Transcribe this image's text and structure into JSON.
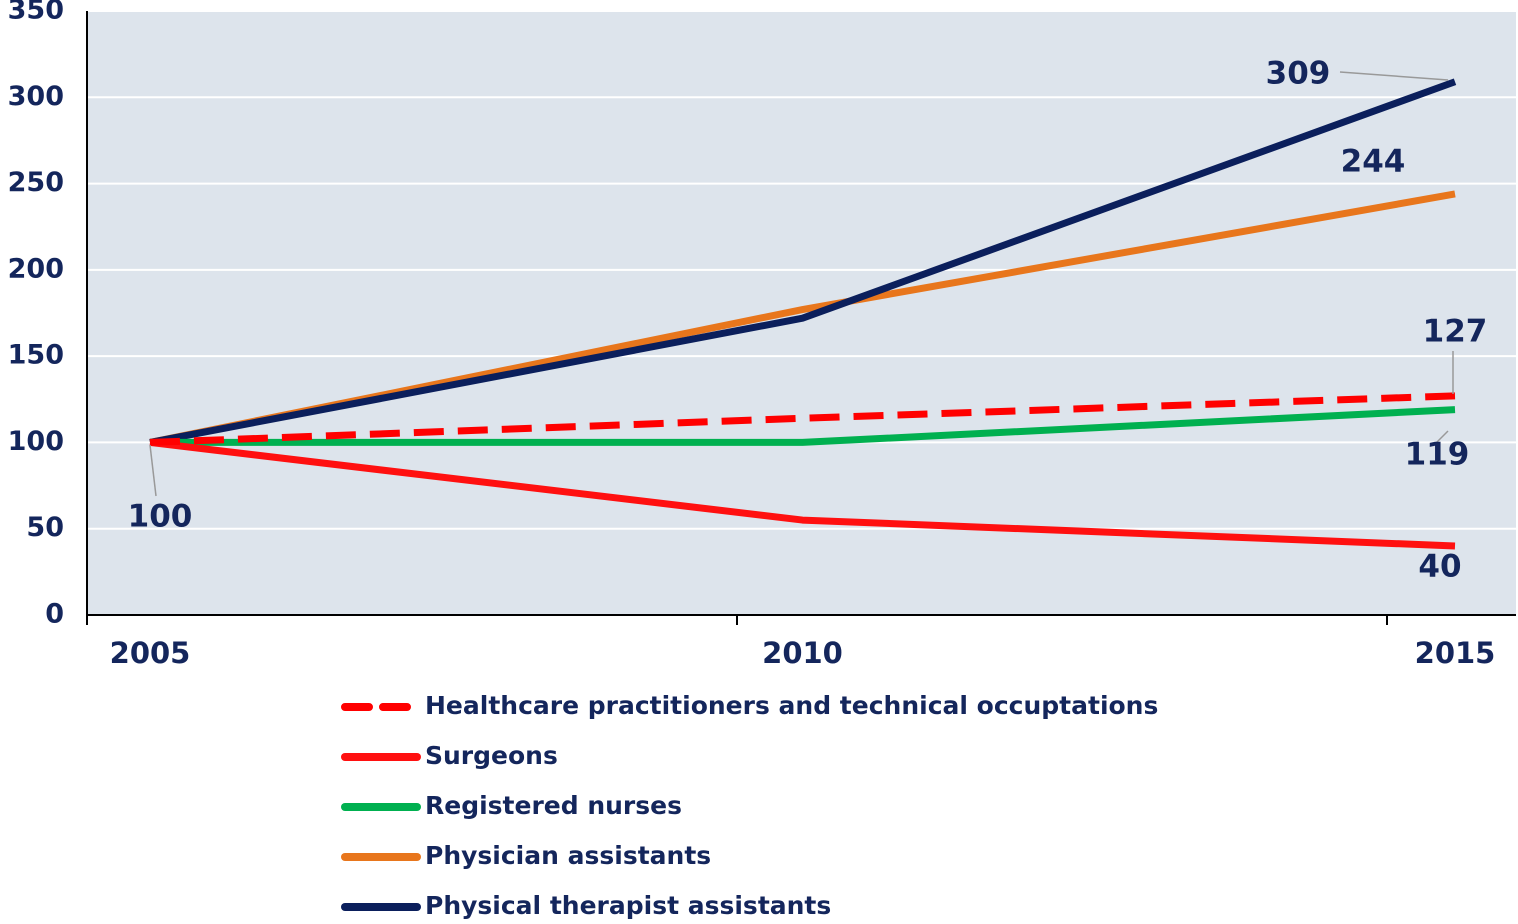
{
  "chart_data": {
    "type": "line",
    "categories": [
      "2005",
      "2010",
      "2015"
    ],
    "series": [
      {
        "name": "Healthcare practitioners and technical occuptations",
        "color": "#ff0000",
        "dashed": true,
        "values": [
          100,
          114,
          127
        ]
      },
      {
        "name": "Surgeons",
        "color": "#ff1010",
        "values": [
          100,
          55,
          40
        ]
      },
      {
        "name": "Registered nurses",
        "color": "#00b050",
        "values": [
          100,
          100,
          119
        ]
      },
      {
        "name": "Physician assistants",
        "color": "#e8761c",
        "values": [
          100,
          177,
          244
        ]
      },
      {
        "name": "Physical therapist assistants",
        "color": "#0b1f5c",
        "values": [
          100,
          172,
          309
        ]
      }
    ],
    "ylim": [
      0,
      350
    ],
    "yticks": [
      0,
      50,
      100,
      150,
      200,
      250,
      300,
      350
    ],
    "grid": true,
    "legend": "bottom"
  }
}
